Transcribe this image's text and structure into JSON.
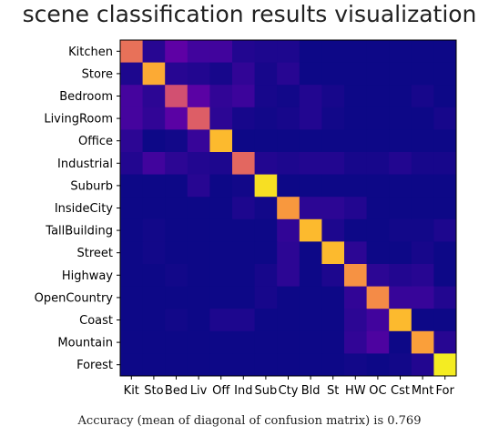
{
  "page": {
    "title": "scene classification results visualization",
    "caption": "Accuracy (mean of diagonal of confusion matrix) is 0.769"
  },
  "chart_data": {
    "type": "heatmap",
    "title": "",
    "xlabel": "",
    "ylabel": "",
    "colormap": "plasma",
    "value_range": [
      0,
      1
    ],
    "grid": false,
    "row_labels": [
      "Kitchen",
      "Store",
      "Bedroom",
      "LivingRoom",
      "Office",
      "Industrial",
      "Suburb",
      "InsideCity",
      "TallBuilding",
      "Street",
      "Highway",
      "OpenCountry",
      "Coast",
      "Mountain",
      "Forest"
    ],
    "col_labels": [
      "Kit",
      "Sto",
      "Bed",
      "Liv",
      "Off",
      "Ind",
      "Sub",
      "Cty",
      "Bld",
      "St",
      "HW",
      "OC",
      "Cst",
      "Mnt",
      "For"
    ],
    "matrix": [
      [
        0.64,
        0.05,
        0.17,
        0.1,
        0.1,
        0.04,
        0.03,
        0.03,
        0.0,
        0.0,
        0.0,
        0.0,
        0.0,
        0.0,
        0.0
      ],
      [
        0.03,
        0.81,
        0.05,
        0.04,
        0.02,
        0.07,
        0.02,
        0.05,
        0.0,
        0.0,
        0.0,
        0.0,
        0.0,
        0.0,
        0.0
      ],
      [
        0.11,
        0.06,
        0.53,
        0.16,
        0.07,
        0.09,
        0.02,
        0.01,
        0.04,
        0.02,
        0.0,
        0.0,
        0.0,
        0.02,
        0.0
      ],
      [
        0.11,
        0.07,
        0.16,
        0.58,
        0.06,
        0.02,
        0.01,
        0.02,
        0.04,
        0.01,
        0.0,
        0.0,
        0.0,
        0.0,
        0.02
      ],
      [
        0.06,
        0.0,
        0.01,
        0.08,
        0.85,
        0.0,
        0.0,
        0.0,
        0.0,
        0.0,
        0.0,
        0.0,
        0.0,
        0.0,
        0.0
      ],
      [
        0.04,
        0.1,
        0.06,
        0.04,
        0.03,
        0.61,
        0.04,
        0.03,
        0.04,
        0.04,
        0.02,
        0.02,
        0.04,
        0.02,
        0.02
      ],
      [
        0.0,
        0.0,
        0.0,
        0.05,
        0.0,
        0.01,
        0.94,
        0.0,
        0.0,
        0.0,
        0.0,
        0.0,
        0.0,
        0.0,
        0.0
      ],
      [
        0.0,
        0.0,
        0.0,
        0.0,
        0.0,
        0.03,
        0.01,
        0.76,
        0.06,
        0.06,
        0.04,
        0.0,
        0.0,
        0.0,
        0.0
      ],
      [
        0.0,
        0.01,
        0.0,
        0.0,
        0.0,
        0.0,
        0.0,
        0.07,
        0.85,
        0.03,
        0.0,
        0.0,
        0.01,
        0.01,
        0.03
      ],
      [
        0.0,
        0.01,
        0.0,
        0.0,
        0.0,
        0.0,
        0.0,
        0.06,
        0.0,
        0.85,
        0.06,
        0.0,
        0.0,
        0.02,
        0.0
      ],
      [
        0.0,
        0.0,
        0.01,
        0.0,
        0.0,
        0.0,
        0.02,
        0.06,
        0.0,
        0.03,
        0.74,
        0.06,
        0.04,
        0.05,
        0.0
      ],
      [
        0.0,
        0.0,
        0.0,
        0.0,
        0.0,
        0.0,
        0.02,
        0.0,
        0.0,
        0.0,
        0.07,
        0.72,
        0.08,
        0.08,
        0.04
      ],
      [
        0.0,
        0.0,
        0.01,
        0.0,
        0.03,
        0.03,
        0.0,
        0.0,
        0.0,
        0.0,
        0.06,
        0.1,
        0.85,
        0.0,
        0.0
      ],
      [
        0.0,
        0.0,
        0.0,
        0.0,
        0.0,
        0.0,
        0.0,
        0.0,
        0.0,
        0.0,
        0.07,
        0.13,
        0.0,
        0.78,
        0.05
      ],
      [
        0.0,
        0.0,
        0.0,
        0.0,
        0.0,
        0.0,
        0.0,
        0.0,
        0.0,
        0.0,
        0.01,
        0.0,
        0.01,
        0.04,
        0.97
      ]
    ]
  }
}
